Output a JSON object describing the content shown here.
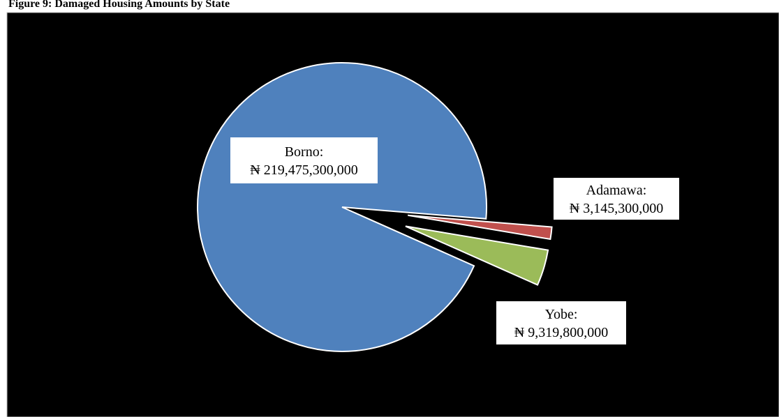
{
  "chart_data": {
    "type": "pie",
    "title": "Figure 9: Damaged Housing Amounts by State",
    "categories": [
      "Borno:",
      "Adamawa:",
      "Yobe:"
    ],
    "values": [
      219475300000,
      3145300000,
      9319800000
    ],
    "value_labels": [
      "₦ 219,475,300,000",
      "₦ 3,145,300,000",
      "₦ 9,319,800,000"
    ],
    "colors": [
      "#4f81bd",
      "#c0504d",
      "#9bbb59"
    ],
    "explode": [
      false,
      true,
      true
    ]
  }
}
